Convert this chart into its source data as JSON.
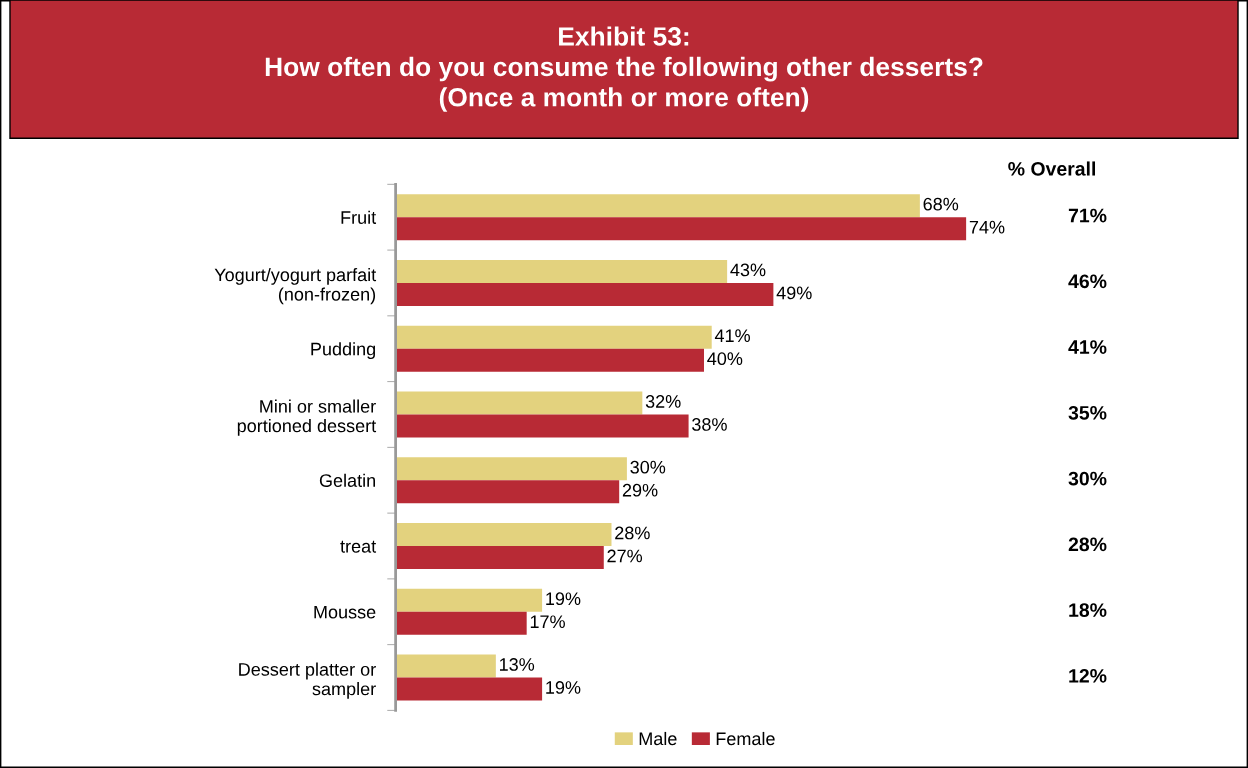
{
  "chart_data": {
    "type": "bar",
    "orientation": "horizontal",
    "title": "Exhibit 53:\nHow often do you consume the following other desserts?\n(Once a month or more often)",
    "categories": [
      "Fruit",
      "Yogurt/yogurt parfait\n(non-frozen)",
      "Pudding",
      "Mini or smaller\nportioned dessert",
      "Gelatin",
      "treat",
      "Mousse",
      "Dessert platter or\nsampler"
    ],
    "series": [
      {
        "name": "Male",
        "color": "#e3d27e",
        "values": [
          68,
          43,
          41,
          32,
          30,
          28,
          19,
          13
        ],
        "value_labels": [
          "68%",
          "43%",
          "41%",
          "32%",
          "30%",
          "28%",
          "19%",
          "13%"
        ]
      },
      {
        "name": "Female",
        "color": "#b82a35",
        "values": [
          74,
          49,
          40,
          38,
          29,
          27,
          17,
          19
        ],
        "value_labels": [
          "74%",
          "49%",
          "40%",
          "38%",
          "29%",
          "27%",
          "17%",
          "19%"
        ]
      }
    ],
    "annotations": [
      "% Overall",
      "71%",
      "46%",
      "41%",
      "35%",
      "30%",
      "28%",
      "18%",
      "12%"
    ],
    "tick_labels": "y",
    "grid": false,
    "legend": "bottom"
  }
}
